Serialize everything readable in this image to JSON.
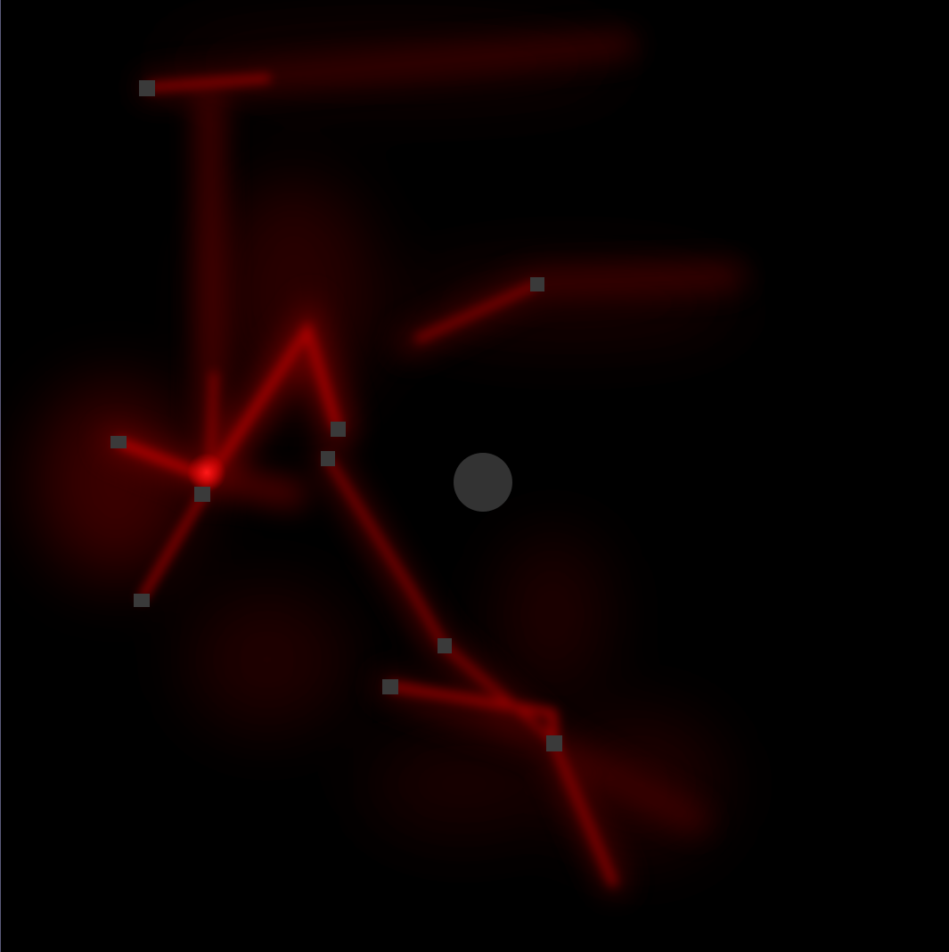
{
  "scene": {
    "background_color": "#000000",
    "glow_color": "#ff0000",
    "node_color": "#3a3a3a",
    "player_color": "#333333",
    "edge_color": "#5a5a7a"
  },
  "icons": {
    "node": "square-node-icon",
    "player": "circle-player-icon"
  }
}
